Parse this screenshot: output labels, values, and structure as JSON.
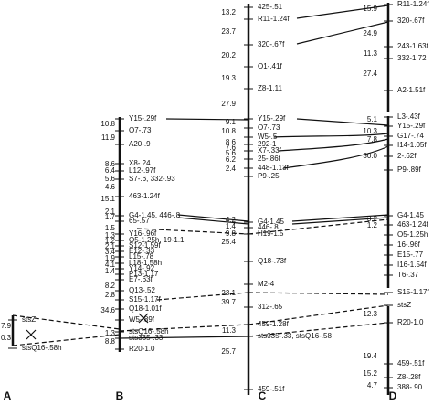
{
  "chromosomes": [
    {
      "label": "A",
      "distances": [
        "7.9",
        "0.3"
      ],
      "markers": [
        "stsZ",
        "stsQ16-.58h"
      ]
    },
    {
      "label": "B",
      "distances": [
        "10.8",
        "11.9",
        "8.6",
        "6.4",
        "5.6",
        "4.6",
        "15.1",
        "2.1",
        "1.7",
        "1.5",
        "1.3",
        "1.2",
        "2.1",
        "3.4",
        "1.9",
        "4.1",
        "1.4",
        "8.2",
        "2.8",
        "34.6",
        "1.3",
        "8.8"
      ],
      "markers": [
        "Y15-.29f",
        "O7-.73",
        "A20-.9",
        "X8-.24",
        "L12-.97f",
        "S7-.6, 332-.93",
        "463-1.24f",
        "G4-1.45, 446-.8",
        "65-.57",
        "Y16-.96f",
        "O5-1.25h, 19-1.1",
        "S12-1.59f",
        "E12-.33",
        "L15-.78",
        "L18-1.58h",
        "Y14-.92",
        "P13-1.17",
        "E7-.63f",
        "Q13-.52",
        "S15-1.17f",
        "Q18-1.01f",
        "W5-.89f",
        "stsQ16-.58h",
        "sts335-.33",
        "R20-1.0"
      ]
    },
    {
      "label": "C",
      "distances": [
        "13.2",
        "23.7",
        "20.2",
        "19.3",
        "27.9",
        "9.1",
        "10.8",
        "8.6",
        "7.6",
        "5.6",
        "6.2",
        "2.4",
        "4.2",
        "1.4",
        "9.8",
        "25.4",
        "23.1",
        "39.7",
        "11.3",
        "25.7"
      ],
      "markers": [
        "425-.51",
        "R11-1.24f",
        "320-.67f",
        "O1-.41f",
        "Z8-1.11",
        "Y15-.29f",
        "O7-.73",
        "W5-.5",
        "292-1",
        "X7-.33f",
        "25-.86f",
        "448-1.13f",
        "P9-.25",
        "G4-1.45",
        "446-.8",
        "H19-1.5",
        "Q18-.73f",
        "M2-4",
        "312-.65",
        "459-1.28f",
        "sts335-.33, stsQ16-.58",
        "459-.51f"
      ]
    },
    {
      "label": "D",
      "distances": [
        "15.9",
        "24.9",
        "11.3",
        "27.4",
        "5.1",
        "10.3",
        "7.8",
        "30.0",
        "3.2",
        "1.2",
        "12.3",
        "19.4",
        "15.2",
        "4.7"
      ],
      "markers": [
        "R11-1.24f",
        "320-.67f",
        "243-1.63f",
        "332-1.72",
        "A2-1.51f",
        "L3-.43f",
        "Y15-.29f",
        "G17-.74",
        "I14-1.05f",
        "2-.62f",
        "P9-.89f",
        "G4-1.45",
        "463-1.24f",
        "O5-1.25h",
        "16-.96f",
        "E15-.77",
        "I16-1.54f",
        "T6-.37",
        "S15-1.17f",
        "stsZ",
        "R20-1.0",
        "459-.51f",
        "Z8-.28f",
        "388-.90"
      ]
    }
  ]
}
